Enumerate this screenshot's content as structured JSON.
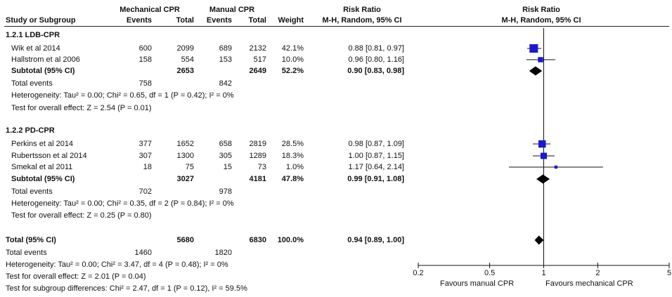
{
  "header": {
    "mechanical_group": "Mechanical CPR",
    "manual_group": "Manual CPR",
    "study_col": "Study or Subgroup",
    "events": "Events",
    "total": "Total",
    "weight": "Weight",
    "rr_title": "Risk Ratio",
    "rr_method": "M-H, Random, 95% CI"
  },
  "groups": [
    {
      "title": "1.2.1 LDB-CPR",
      "studies": [
        {
          "name": "Wik et al 2014",
          "mech_events": "600",
          "mech_total": "2099",
          "man_events": "689",
          "man_total": "2132",
          "weight": "42.1%",
          "ci": "0.88 [0.81, 0.97]"
        },
        {
          "name": "Hallstrom et al 2006",
          "mech_events": "158",
          "mech_total": "554",
          "man_events": "153",
          "man_total": "517",
          "weight": "10.0%",
          "ci": "0.96 [0.80, 1.16]"
        }
      ],
      "subtotal": {
        "label": "Subtotal (95% CI)",
        "mech_total": "2653",
        "man_total": "2649",
        "weight": "52.2%",
        "ci": "0.90 [0.83, 0.98]"
      },
      "total_events": {
        "label": "Total events",
        "mech": "758",
        "man": "842"
      },
      "heterogeneity": "Heterogeneity: Tau² = 0.00; Chi² = 0.65, df = 1 (P = 0.42); I² = 0%",
      "overall": "Test for overall effect: Z = 2.54 (P = 0.01)"
    },
    {
      "title": "1.2.2 PD-CPR",
      "studies": [
        {
          "name": "Perkins et al 2014",
          "mech_events": "377",
          "mech_total": "1652",
          "man_events": "658",
          "man_total": "2819",
          "weight": "28.5%",
          "ci": "0.98 [0.87, 1.09]"
        },
        {
          "name": "Rubertsson et al 2014",
          "mech_events": "307",
          "mech_total": "1300",
          "man_events": "305",
          "man_total": "1289",
          "weight": "18.3%",
          "ci": "1.00 [0.87, 1.15]"
        },
        {
          "name": "Smekal et al 2011",
          "mech_events": "18",
          "mech_total": "75",
          "man_events": "15",
          "man_total": "73",
          "weight": "1.0%",
          "ci": "1.17 [0.64, 2.14]"
        }
      ],
      "subtotal": {
        "label": "Subtotal (95% CI)",
        "mech_total": "3027",
        "man_total": "4181",
        "weight": "47.8%",
        "ci": "0.99 [0.91, 1.08]"
      },
      "total_events": {
        "label": "Total events",
        "mech": "702",
        "man": "978"
      },
      "heterogeneity": "Heterogeneity: Tau² = 0.00; Chi² = 0.35, df = 2 (P = 0.84); I² = 0%",
      "overall": "Test for overall effect: Z = 0.25 (P = 0.80)"
    }
  ],
  "total": {
    "label": "Total (95% CI)",
    "mech_total": "5680",
    "man_total": "6830",
    "weight": "100.0%",
    "ci": "0.94 [0.89, 1.00]"
  },
  "total_events": {
    "label": "Total events",
    "mech": "1460",
    "man": "1820"
  },
  "footer": {
    "heterogeneity": "Heterogeneity: Tau² = 0.00; Chi² = 3.47, df = 4 (P = 0.48); I² = 0%",
    "overall": "Test for overall effect: Z = 2.01 (P = 0.04)",
    "subgroup": "Test for subgroup differences: Chi² = 2.47, df = 1 (P = 0.12), I² = 59.5%"
  },
  "axis": {
    "ticks": [
      "0.2",
      "0.5",
      "1",
      "2",
      "5"
    ],
    "left_label": "Favours manual CPR",
    "right_label": "Favours mechanical CPR"
  },
  "chart_data": {
    "type": "forest",
    "scale": "log",
    "xlim": [
      0.2,
      5
    ],
    "ticks": [
      0.2,
      0.5,
      1,
      2,
      5
    ],
    "null_line": 1,
    "colors": {
      "study_marker": "#1a1acc",
      "diamond": "#000000"
    },
    "studies": [
      {
        "name": "Wik et al 2014",
        "rr": 0.88,
        "lo": 0.81,
        "hi": 0.97,
        "weight": 42.1
      },
      {
        "name": "Hallstrom et al 2006",
        "rr": 0.96,
        "lo": 0.8,
        "hi": 1.16,
        "weight": 10.0
      },
      {
        "name": "Perkins et al 2014",
        "rr": 0.98,
        "lo": 0.87,
        "hi": 1.09,
        "weight": 28.5
      },
      {
        "name": "Rubertsson et al 2014",
        "rr": 1.0,
        "lo": 0.87,
        "hi": 1.15,
        "weight": 18.3
      },
      {
        "name": "Smekal et al 2011",
        "rr": 1.17,
        "lo": 0.64,
        "hi": 2.14,
        "weight": 1.0
      }
    ],
    "summaries": [
      {
        "name": "Subtotal 1.2.1",
        "rr": 0.9,
        "lo": 0.83,
        "hi": 0.98
      },
      {
        "name": "Subtotal 1.2.2",
        "rr": 0.99,
        "lo": 0.91,
        "hi": 1.08
      },
      {
        "name": "Total",
        "rr": 0.94,
        "lo": 0.89,
        "hi": 1.0
      }
    ]
  }
}
